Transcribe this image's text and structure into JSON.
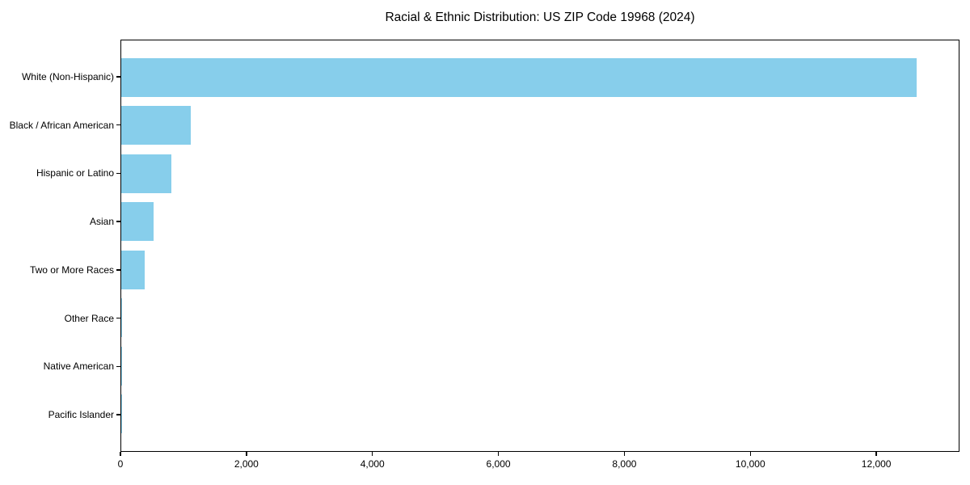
{
  "chart_data": {
    "type": "bar",
    "orientation": "horizontal",
    "title": "Racial & Ethnic Distribution: US ZIP Code 19968 (2024)",
    "categories": [
      "White (Non-Hispanic)",
      "Black / African American",
      "Hispanic or Latino",
      "Asian",
      "Two or More Races",
      "Other Race",
      "Native American",
      "Pacific Islander"
    ],
    "values": [
      12650,
      1100,
      800,
      510,
      370,
      15,
      12,
      4
    ],
    "xlabel": "",
    "ylabel": "",
    "xlim": [
      0,
      13320
    ],
    "x_ticks": [
      0,
      2000,
      4000,
      6000,
      8000,
      10000,
      12000
    ],
    "x_tick_labels": [
      "0",
      "2,000",
      "4,000",
      "6,000",
      "8,000",
      "10,000",
      "12,000"
    ],
    "bar_color": "#87CEEB",
    "axis_color": "#000000",
    "background_color": "#ffffff",
    "grid": false,
    "legend": null
  }
}
